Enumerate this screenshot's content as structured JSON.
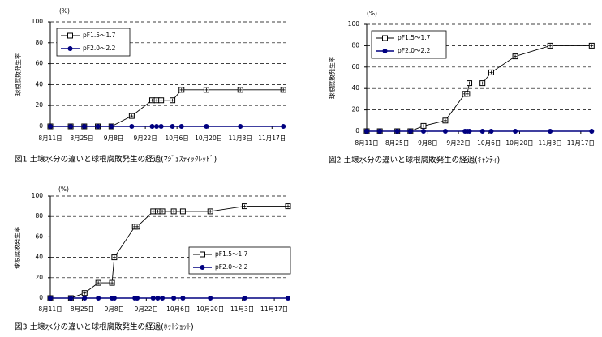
{
  "chart_data": [
    {
      "type": "line",
      "title": "図1 土壌水分の違いと球根腐敗発生の経過(ﾏｼﾞｪｽﾃｨｯｸﾚｯﾄﾞ)",
      "y_label": "球根腐敗発生率",
      "y_unit": "(%)",
      "x": [
        0,
        9,
        15,
        21,
        27,
        36,
        45,
        47,
        49,
        54,
        58,
        69,
        84,
        103
      ],
      "xlim": [
        0,
        104
      ],
      "xticks": [
        {
          "value": 0,
          "label": "8月11日"
        },
        {
          "value": 14,
          "label": "8月25日"
        },
        {
          "value": 28,
          "label": "9月8日"
        },
        {
          "value": 42,
          "label": "9月22日"
        },
        {
          "value": 56,
          "label": "10月6日"
        },
        {
          "value": 70,
          "label": "10月20日"
        },
        {
          "value": 84,
          "label": "11月3日"
        },
        {
          "value": 98,
          "label": "11月17日"
        }
      ],
      "ylim": [
        0,
        100
      ],
      "yticks": [
        0,
        20,
        40,
        60,
        80,
        100
      ],
      "grid": true,
      "series": [
        {
          "name": "pF1.5～1.7",
          "color": "#000000",
          "marker": "square",
          "values": [
            0,
            0,
            0,
            0,
            0,
            10,
            25,
            25,
            25,
            25,
            35,
            35,
            35,
            35
          ]
        },
        {
          "name": "pF2.0～2.2",
          "color": "#000080",
          "marker": "circle",
          "values": [
            0,
            0,
            0,
            0,
            0,
            0,
            0,
            0,
            0,
            0,
            0,
            0,
            0,
            0
          ]
        }
      ]
    },
    {
      "type": "line",
      "title": "図2 土壌水分の違いと球根腐敗発生の経過(ｷｬﾝﾃｨ)",
      "y_label": "球根腐敗発生率",
      "y_unit": "(%)",
      "x": [
        0,
        6,
        14,
        20,
        26,
        36,
        45,
        46,
        47,
        53,
        57,
        68,
        84,
        103
      ],
      "xlim": [
        0,
        104
      ],
      "xticks": [
        {
          "value": 0,
          "label": "8月11日"
        },
        {
          "value": 14,
          "label": "8月25日"
        },
        {
          "value": 28,
          "label": "9月8日"
        },
        {
          "value": 42,
          "label": "9月22日"
        },
        {
          "value": 56,
          "label": "10月6日"
        },
        {
          "value": 70,
          "label": "10月20日"
        },
        {
          "value": 84,
          "label": "11月3日"
        },
        {
          "value": 98,
          "label": "11月17日"
        }
      ],
      "ylim": [
        0,
        100
      ],
      "yticks": [
        0,
        20,
        40,
        60,
        80,
        100
      ],
      "grid": true,
      "series": [
        {
          "name": "pF1.5～1.7",
          "color": "#000000",
          "marker": "square",
          "values": [
            0,
            0,
            0,
            0,
            5,
            10,
            35,
            35,
            45,
            45,
            55,
            70,
            80,
            80
          ]
        },
        {
          "name": "pF2.0～2.2",
          "color": "#000080",
          "marker": "circle",
          "values": [
            0,
            0,
            0,
            0,
            0,
            0,
            0,
            0,
            0,
            0,
            0,
            0,
            0,
            0
          ]
        }
      ]
    },
    {
      "type": "line",
      "title": "図3 土壌水分の違いと球根腐敗発生の経過(ﾎｯﾄｼｮｯﾄ)",
      "y_label": "球根腐敗発生率",
      "y_unit": "(%)",
      "x": [
        0,
        9,
        15,
        21,
        27,
        28,
        37,
        38,
        45,
        47,
        49,
        54,
        58,
        70,
        85,
        104
      ],
      "xlim": [
        0,
        104
      ],
      "xticks": [
        {
          "value": 0,
          "label": "8月11日"
        },
        {
          "value": 14,
          "label": "8月25日"
        },
        {
          "value": 28,
          "label": "9月8日"
        },
        {
          "value": 42,
          "label": "9月22日"
        },
        {
          "value": 56,
          "label": "10月6日"
        },
        {
          "value": 70,
          "label": "10月20日"
        },
        {
          "value": 84,
          "label": "11月3日"
        },
        {
          "value": 98,
          "label": "11月17日"
        }
      ],
      "ylim": [
        0,
        100
      ],
      "yticks": [
        0,
        20,
        40,
        60,
        80,
        100
      ],
      "grid": true,
      "series": [
        {
          "name": "pF1.5～1.7",
          "color": "#000000",
          "marker": "square",
          "values": [
            0,
            0,
            5,
            15,
            15,
            40,
            70,
            70,
            85,
            85,
            85,
            85,
            85,
            85,
            90,
            90
          ]
        },
        {
          "name": "pF2.0～2.2",
          "color": "#000080",
          "marker": "circle",
          "values": [
            0,
            0,
            0,
            0,
            0,
            0,
            0,
            0,
            0,
            0,
            0,
            0,
            0,
            0,
            0,
            0
          ]
        }
      ]
    }
  ]
}
